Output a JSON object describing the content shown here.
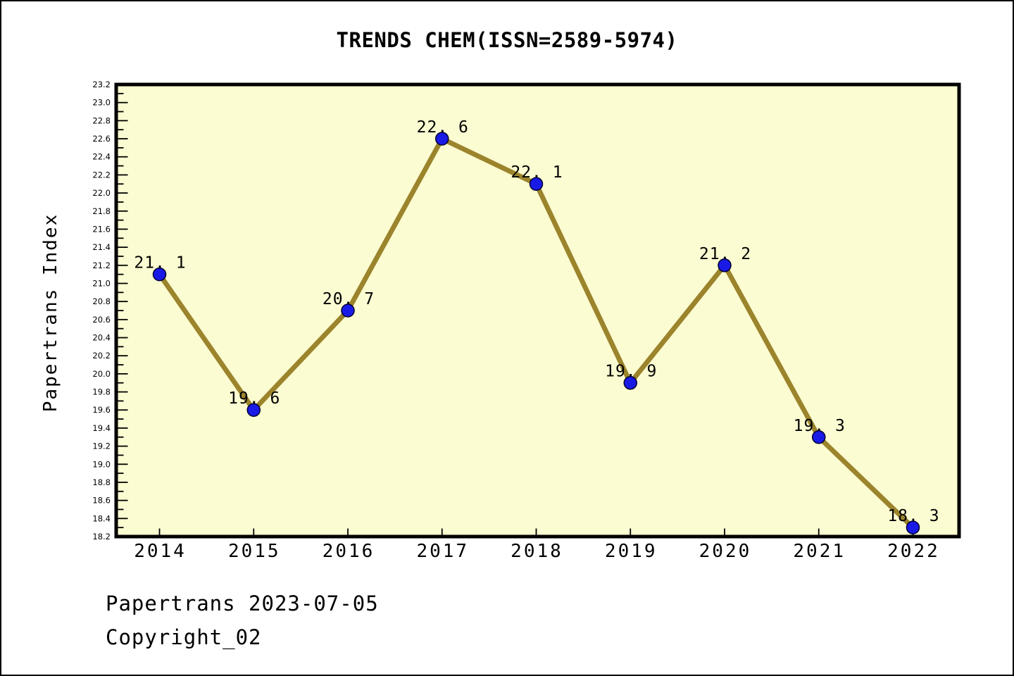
{
  "chart_data": {
    "type": "line",
    "title": "TRENDS CHEM(ISSN=2589-5974)",
    "xlabel": "",
    "ylabel": "Papertrans Index",
    "categories": [
      "2014",
      "2015",
      "2016",
      "2017",
      "2018",
      "2019",
      "2020",
      "2021",
      "2022"
    ],
    "x": [
      2014,
      2015,
      2016,
      2017,
      2018,
      2019,
      2020,
      2021,
      2022
    ],
    "values": [
      21.1,
      19.6,
      20.7,
      22.6,
      22.1,
      19.9,
      21.2,
      19.3,
      18.3
    ],
    "point_labels": [
      "21. 1",
      "19. 6",
      "20. 7",
      "22. 6",
      "22. 1",
      "19. 9",
      "21. 2",
      "19. 3",
      "18. 3"
    ],
    "ylim": [
      18.2,
      23.2
    ],
    "y_major_step": 0.2,
    "y_minor_step": 0.1,
    "y_tick_labels": [
      "18.2",
      "18.4",
      "18.6",
      "18.8",
      "19.0",
      "19.2",
      "19.4",
      "19.6",
      "19.8",
      "20.0",
      "20.2",
      "20.4",
      "20.6",
      "20.8",
      "21.0",
      "21.2",
      "21.4",
      "21.6",
      "21.8",
      "22.0",
      "22.2",
      "22.4",
      "22.6",
      "22.8",
      "23.0",
      "23.2"
    ],
    "grid": false,
    "legend": "none",
    "colors": {
      "line": "#9B842C",
      "marker": "#1A1AE6",
      "marker_edge": "#000030",
      "plot_bg": "#FCFCD2",
      "frame": "#000000",
      "text": "#000000",
      "outer_bg": "#FFFFFF"
    }
  },
  "footer": {
    "line1": "Papertrans 2023-07-05",
    "line2": "Copyright_02"
  }
}
